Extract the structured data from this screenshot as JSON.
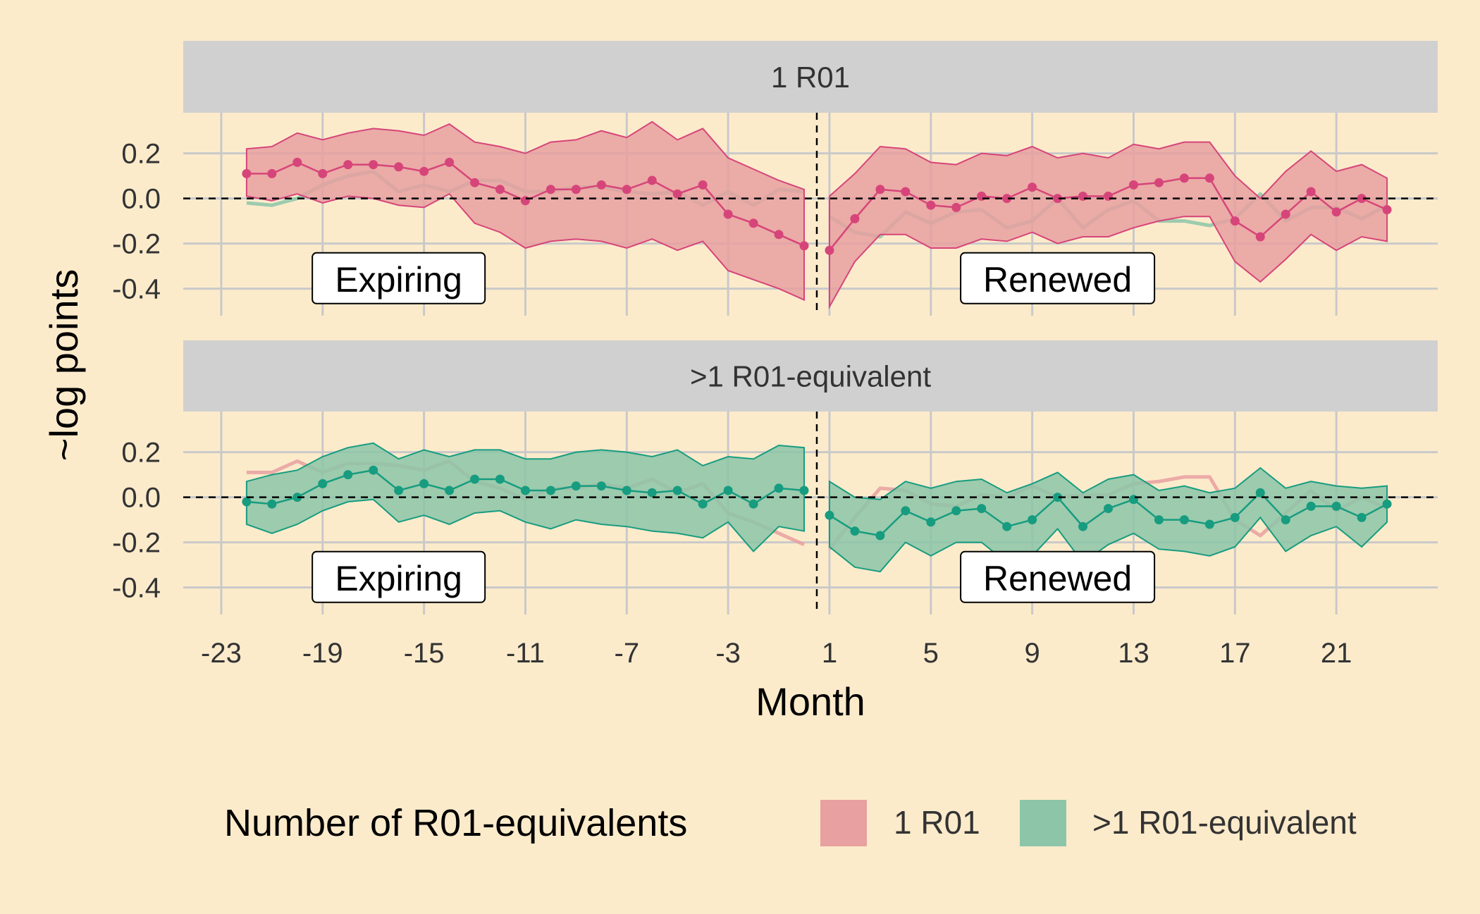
{
  "chart_data": {
    "type": "line",
    "xlabel": "Month",
    "ylabel": "~log points",
    "x_ticks": [
      -23,
      -19,
      -15,
      -11,
      -7,
      -3,
      1,
      5,
      9,
      13,
      17,
      21
    ],
    "xlim": [
      -24.5,
      25
    ],
    "y_ticks": [
      0.2,
      0.0,
      -0.2,
      -0.4
    ],
    "y_tick_labels": [
      "0.2",
      "0.0",
      "-0.2",
      "-0.4"
    ],
    "ylim": [
      -0.52,
      0.38
    ],
    "reference_lines": {
      "y": 0,
      "x": 0.5
    },
    "annotations": [
      "Expiring",
      "Renewed"
    ],
    "legend": {
      "title": "Number of R01-equivalents",
      "position": "bottom",
      "items": [
        {
          "label": "1 R01",
          "color": "#E8A0A0"
        },
        {
          "label": ">1 R01-equivalent",
          "color": "#8CC5A8"
        }
      ]
    },
    "series": [
      {
        "name": "1 R01",
        "color": "#D6457A",
        "fill": "#E8A0A0",
        "x": [
          -22,
          -21,
          -20,
          -19,
          -18,
          -17,
          -16,
          -15,
          -14,
          -13,
          -12,
          -11,
          -10,
          -9,
          -8,
          -7,
          -6,
          -5,
          -4,
          -3,
          -2,
          -1,
          0,
          1,
          2,
          3,
          4,
          5,
          6,
          7,
          8,
          9,
          10,
          11,
          12,
          13,
          14,
          15,
          16,
          17,
          18,
          19,
          20,
          21,
          22,
          23
        ],
        "estimate": [
          0.11,
          0.11,
          0.16,
          0.11,
          0.15,
          0.15,
          0.14,
          0.12,
          0.16,
          0.07,
          0.04,
          -0.01,
          0.04,
          0.04,
          0.06,
          0.04,
          0.08,
          0.02,
          0.06,
          -0.07,
          -0.11,
          -0.16,
          -0.21,
          -0.23,
          -0.09,
          0.04,
          0.03,
          -0.03,
          -0.04,
          0.01,
          0.0,
          0.05,
          0.0,
          0.01,
          0.01,
          0.06,
          0.07,
          0.09,
          0.09,
          -0.1,
          -0.17,
          -0.07,
          0.03,
          -0.06,
          0.0,
          -0.05
        ],
        "lower": [
          0.01,
          -0.01,
          0.02,
          -0.02,
          0.01,
          0.0,
          -0.03,
          -0.04,
          0.02,
          -0.11,
          -0.15,
          -0.22,
          -0.19,
          -0.18,
          -0.19,
          -0.22,
          -0.18,
          -0.23,
          -0.19,
          -0.32,
          -0.36,
          -0.4,
          -0.45,
          -0.48,
          -0.28,
          -0.16,
          -0.16,
          -0.22,
          -0.22,
          -0.18,
          -0.19,
          -0.15,
          -0.2,
          -0.17,
          -0.17,
          -0.13,
          -0.1,
          -0.08,
          -0.08,
          -0.28,
          -0.37,
          -0.27,
          -0.16,
          -0.23,
          -0.17,
          -0.19
        ],
        "upper": [
          0.22,
          0.23,
          0.29,
          0.26,
          0.29,
          0.31,
          0.3,
          0.28,
          0.33,
          0.25,
          0.23,
          0.2,
          0.25,
          0.26,
          0.3,
          0.27,
          0.34,
          0.26,
          0.31,
          0.18,
          0.13,
          0.08,
          0.04,
          0.01,
          0.11,
          0.23,
          0.22,
          0.16,
          0.15,
          0.2,
          0.19,
          0.23,
          0.18,
          0.2,
          0.18,
          0.24,
          0.22,
          0.25,
          0.25,
          0.1,
          0.0,
          0.12,
          0.21,
          0.12,
          0.15,
          0.09
        ]
      },
      {
        "name": ">1 R01-equivalent",
        "color": "#179C80",
        "fill": "#8CC5A8",
        "x": [
          -22,
          -21,
          -20,
          -19,
          -18,
          -17,
          -16,
          -15,
          -14,
          -13,
          -12,
          -11,
          -10,
          -9,
          -8,
          -7,
          -6,
          -5,
          -4,
          -3,
          -2,
          -1,
          0,
          1,
          2,
          3,
          4,
          5,
          6,
          7,
          8,
          9,
          10,
          11,
          12,
          13,
          14,
          15,
          16,
          17,
          18,
          19,
          20,
          21,
          22,
          23
        ],
        "estimate": [
          -0.02,
          -0.03,
          0.0,
          0.06,
          0.1,
          0.12,
          0.03,
          0.06,
          0.03,
          0.08,
          0.08,
          0.03,
          0.03,
          0.05,
          0.05,
          0.03,
          0.02,
          0.03,
          -0.03,
          0.03,
          -0.03,
          0.04,
          0.03,
          -0.08,
          -0.15,
          -0.17,
          -0.06,
          -0.11,
          -0.06,
          -0.05,
          -0.13,
          -0.1,
          0.0,
          -0.13,
          -0.05,
          -0.01,
          -0.1,
          -0.1,
          -0.12,
          -0.09,
          0.02,
          -0.1,
          -0.04,
          -0.04,
          -0.09,
          -0.03
        ],
        "lower": [
          -0.12,
          -0.16,
          -0.12,
          -0.06,
          -0.02,
          -0.01,
          -0.11,
          -0.08,
          -0.12,
          -0.07,
          -0.06,
          -0.11,
          -0.14,
          -0.1,
          -0.12,
          -0.13,
          -0.15,
          -0.16,
          -0.18,
          -0.11,
          -0.24,
          -0.13,
          -0.15,
          -0.22,
          -0.31,
          -0.33,
          -0.2,
          -0.26,
          -0.2,
          -0.2,
          -0.29,
          -0.26,
          -0.14,
          -0.29,
          -0.21,
          -0.16,
          -0.23,
          -0.24,
          -0.26,
          -0.22,
          -0.09,
          -0.24,
          -0.17,
          -0.13,
          -0.22,
          -0.11
        ],
        "upper": [
          0.07,
          0.1,
          0.12,
          0.18,
          0.22,
          0.24,
          0.17,
          0.21,
          0.18,
          0.21,
          0.21,
          0.17,
          0.17,
          0.2,
          0.21,
          0.2,
          0.18,
          0.21,
          0.14,
          0.18,
          0.17,
          0.23,
          0.22,
          0.07,
          0.0,
          -0.01,
          0.07,
          0.04,
          0.07,
          0.08,
          0.02,
          0.06,
          0.11,
          0.02,
          0.08,
          0.1,
          0.03,
          0.05,
          0.02,
          0.04,
          0.13,
          0.04,
          0.07,
          0.05,
          0.04,
          0.05
        ]
      }
    ],
    "panels": [
      {
        "strip": "1 R01",
        "highlight": "1 R01"
      },
      {
        "strip": ">1 R01-equivalent",
        "highlight": ">1 R01-equivalent"
      }
    ]
  }
}
